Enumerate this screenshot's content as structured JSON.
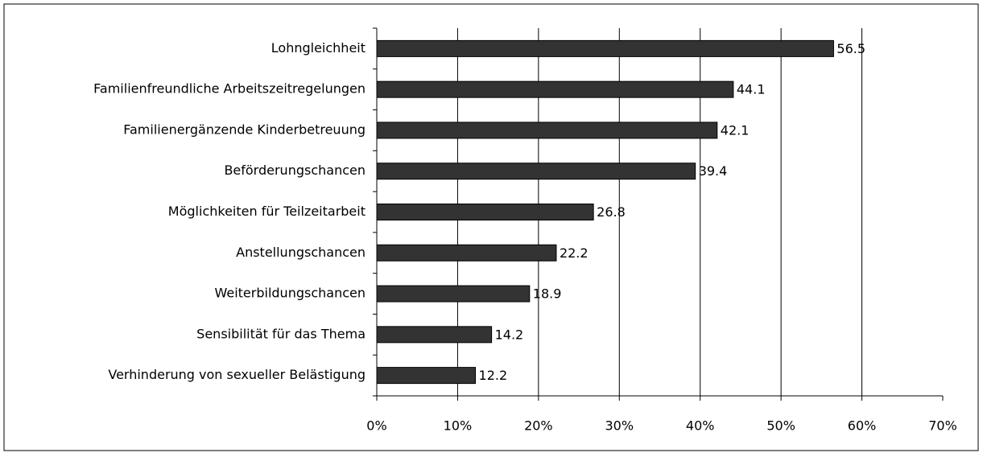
{
  "chart_data": {
    "type": "bar",
    "orientation": "horizontal",
    "categories": [
      "Lohngleichheit",
      "Familienfreundliche Arbeitszeitregelungen",
      "Familienergänzende Kinderbetreuung",
      "Beförderungschancen",
      "Möglichkeiten für Teilzeitarbeit",
      "Anstellungschancen",
      "Weiterbildungschancen",
      "Sensibilität für das Thema",
      "Verhinderung von sexueller Belästigung"
    ],
    "values": [
      56.5,
      44.1,
      42.1,
      39.4,
      26.8,
      22.2,
      18.9,
      14.2,
      12.2
    ],
    "color": "#333333",
    "xlim": [
      0,
      70
    ],
    "xticks": [
      {
        "value": 0,
        "label": "0%"
      },
      {
        "value": 10,
        "label": "10%"
      },
      {
        "value": 20,
        "label": "20%"
      },
      {
        "value": 30,
        "label": "30%"
      },
      {
        "value": 40,
        "label": "40%"
      },
      {
        "value": 50,
        "label": "50%"
      },
      {
        "value": 60,
        "label": "60%"
      },
      {
        "value": 70,
        "label": "70%"
      }
    ],
    "grid": true
  }
}
